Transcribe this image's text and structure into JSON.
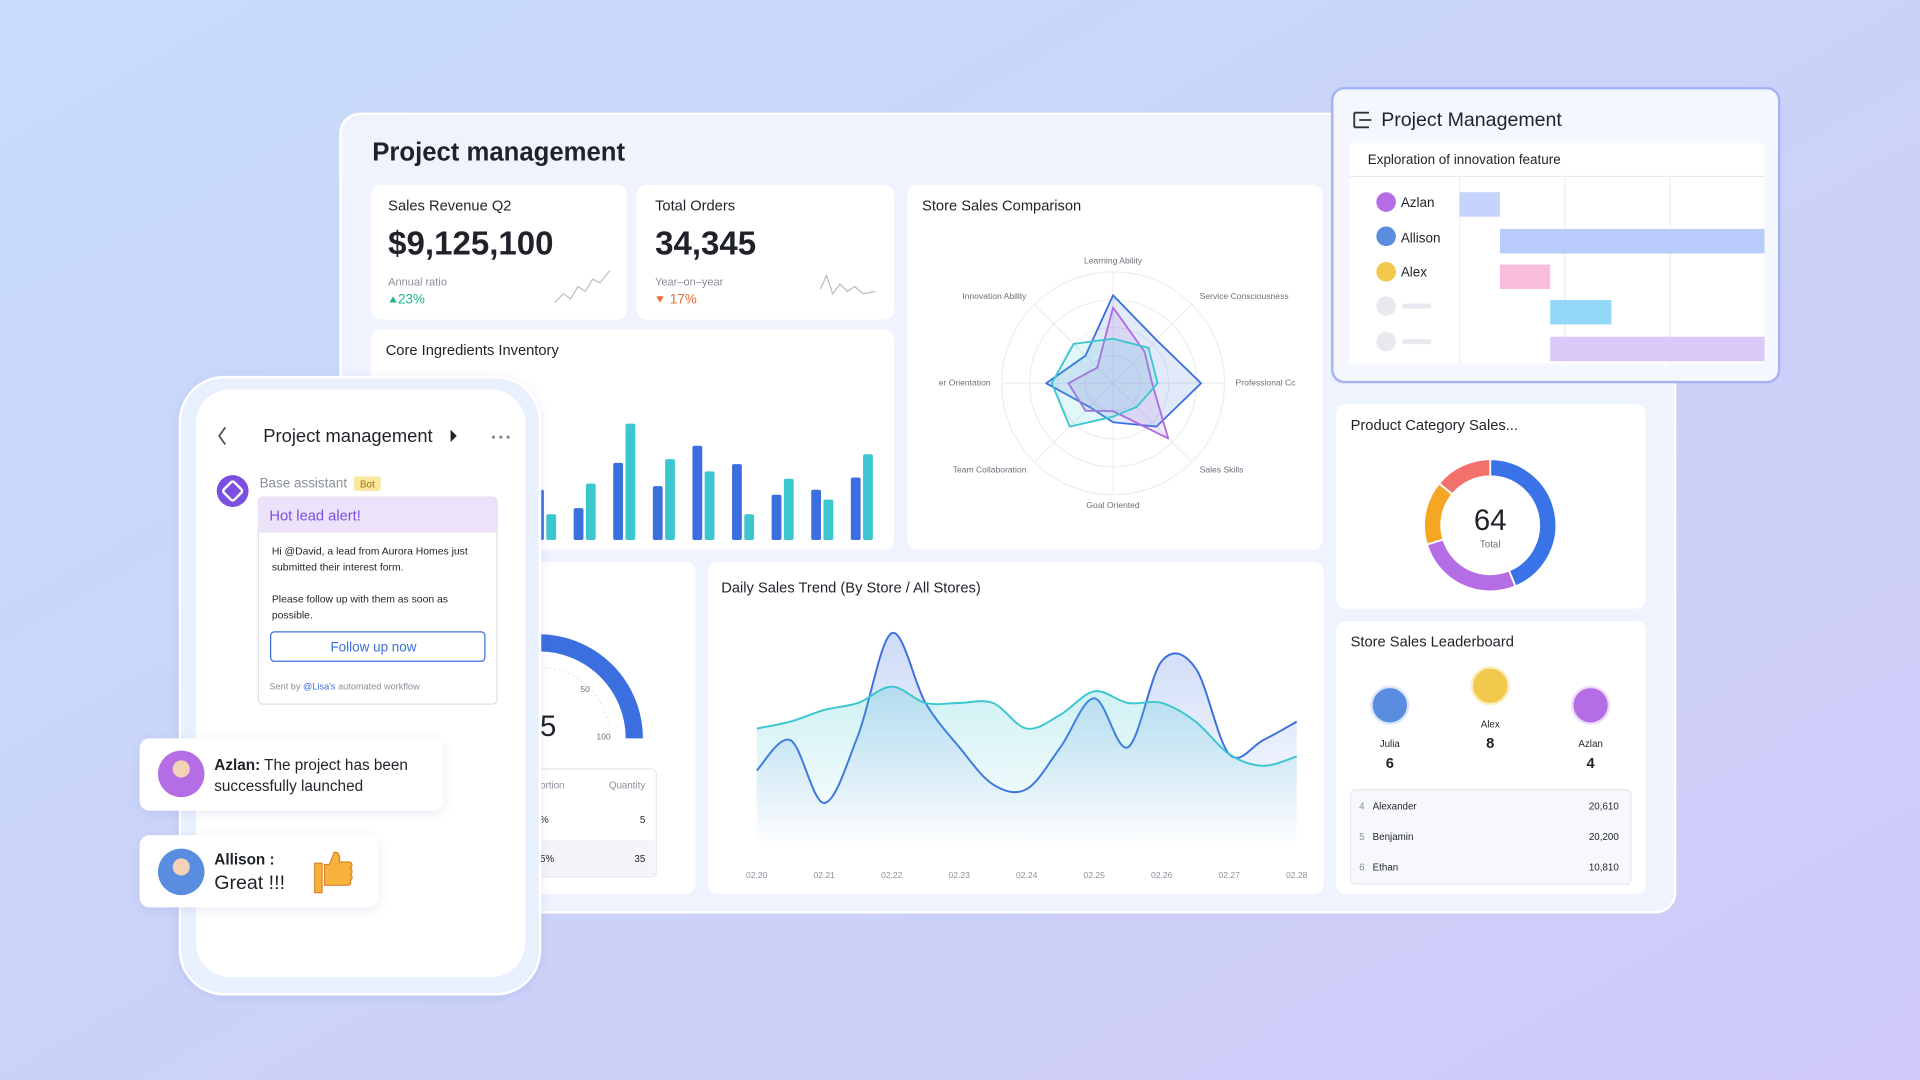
{
  "dashboard": {
    "title": "Project management",
    "kpis": [
      {
        "label": "Sales Revenue Q2",
        "value": "$9,125,100",
        "ratio_label": "Annual ratio",
        "ratio": "23%"
      },
      {
        "label": "Total Orders",
        "value": "34,345",
        "ratio_label": "Year–on–year",
        "ratio": "17%"
      }
    ],
    "stock": {
      "gauge_value": 5,
      "gauge_ticks": [
        50,
        100
      ],
      "table": {
        "header": [
          "ortion",
          "Quantity"
        ],
        "rows": [
          [
            "%",
            "5"
          ],
          [
            "5%",
            "35"
          ]
        ]
      }
    },
    "leaderboard": {
      "title": "Store Sales Leaderboard",
      "podium": [
        {
          "name": "Julia",
          "score": 6
        },
        {
          "name": "Alex",
          "score": 8
        },
        {
          "name": "Azlan",
          "score": 4
        }
      ],
      "list": [
        {
          "rank": 4,
          "name": "Alexander",
          "value": "20,610"
        },
        {
          "rank": 5,
          "name": "Benjamin",
          "value": "20,200"
        },
        {
          "rank": 6,
          "name": "Ethan",
          "value": "10,810"
        }
      ]
    }
  },
  "chart_data": [
    {
      "type": "bar",
      "title": "Core Ingredients Inventory",
      "categories": [
        null,
        null,
        null,
        null,
        null,
        null,
        null,
        null,
        null
      ],
      "series": [
        {
          "color": "#3b6fe0",
          "values": [
            41,
            26,
            63,
            44,
            77,
            62,
            37,
            41,
            51
          ]
        },
        {
          "color": "#3cc6d0",
          "values": [
            21,
            46,
            95,
            66,
            56,
            21,
            50,
            33,
            70
          ]
        }
      ],
      "ylim": [
        0,
        100
      ]
    },
    {
      "type": "radar",
      "title": "Store Sales Comparison",
      "categories": [
        "Learning Ability",
        "Service Consciousness",
        "Professional Cc",
        "Sales Skills",
        "Goal Oriented",
        "Team Collaboration",
        "er Orientation",
        "Innovation Ability"
      ],
      "series": [
        {
          "color": "#3b6fe0",
          "values": [
            79,
            55,
            79,
            55,
            35,
            30,
            60,
            35
          ]
        },
        {
          "color": "#b06ae0",
          "values": [
            68,
            40,
            35,
            70,
            25,
            35,
            40,
            20
          ]
        },
        {
          "color": "#3cc6d0",
          "values": [
            40,
            45,
            40,
            30,
            30,
            55,
            55,
            50
          ]
        }
      ],
      "ylim": [
        0,
        100
      ],
      "grid": true
    },
    {
      "type": "line",
      "title": "Daily Sales Trend (By Store / All Stores)",
      "categories": [
        "02.20",
        null,
        "02.21",
        null,
        "02.22",
        null,
        "02.23",
        null,
        "02.24",
        null,
        "02.25",
        null,
        "02.26",
        null,
        "02.27",
        null,
        "02.28"
      ],
      "series": [
        {
          "color": "#3b6fe0",
          "values": [
            32,
            45,
            18,
            47,
            91,
            61,
            42,
            26,
            24,
            42,
            63,
            42,
            79,
            76,
            39,
            45,
            53
          ]
        },
        {
          "color": "#3cc6d0",
          "values": [
            50,
            53,
            58,
            61,
            68,
            61,
            61,
            61,
            50,
            56,
            66,
            61,
            61,
            53,
            39,
            34,
            38
          ]
        }
      ],
      "ylim": [
        0,
        100
      ]
    },
    {
      "type": "donut",
      "title": "Product Category Sales...",
      "values": [
        28,
        17,
        10,
        9
      ],
      "colors": [
        "#3a73e8",
        "#b56de6",
        "#f5a623",
        "#f2716d"
      ],
      "total": 64,
      "total_label": "Total"
    }
  ],
  "gantt": {
    "title": "Project Management",
    "task": "Exploration of innovation feature",
    "people": [
      "Azlan",
      "Allison",
      "Alex"
    ]
  },
  "phone": {
    "title": "Project management",
    "assistant": "Base assistant",
    "badge": "Bot",
    "alert": "Hot lead alert!",
    "lines": [
      "Hi @David, a lead from Aurora Homes just",
      "submitted their interest form.",
      "Please follow up with them as soon as",
      "possible."
    ],
    "button": "Follow up now",
    "footer": [
      "Sent by ",
      "@Lisa's",
      " automated workflow"
    ]
  },
  "chats": [
    {
      "name": "Azlan:",
      "text": [
        " The project has been",
        "successfully launched"
      ]
    },
    {
      "name": "Allison :",
      "text": [
        "Great !!!"
      ]
    }
  ]
}
